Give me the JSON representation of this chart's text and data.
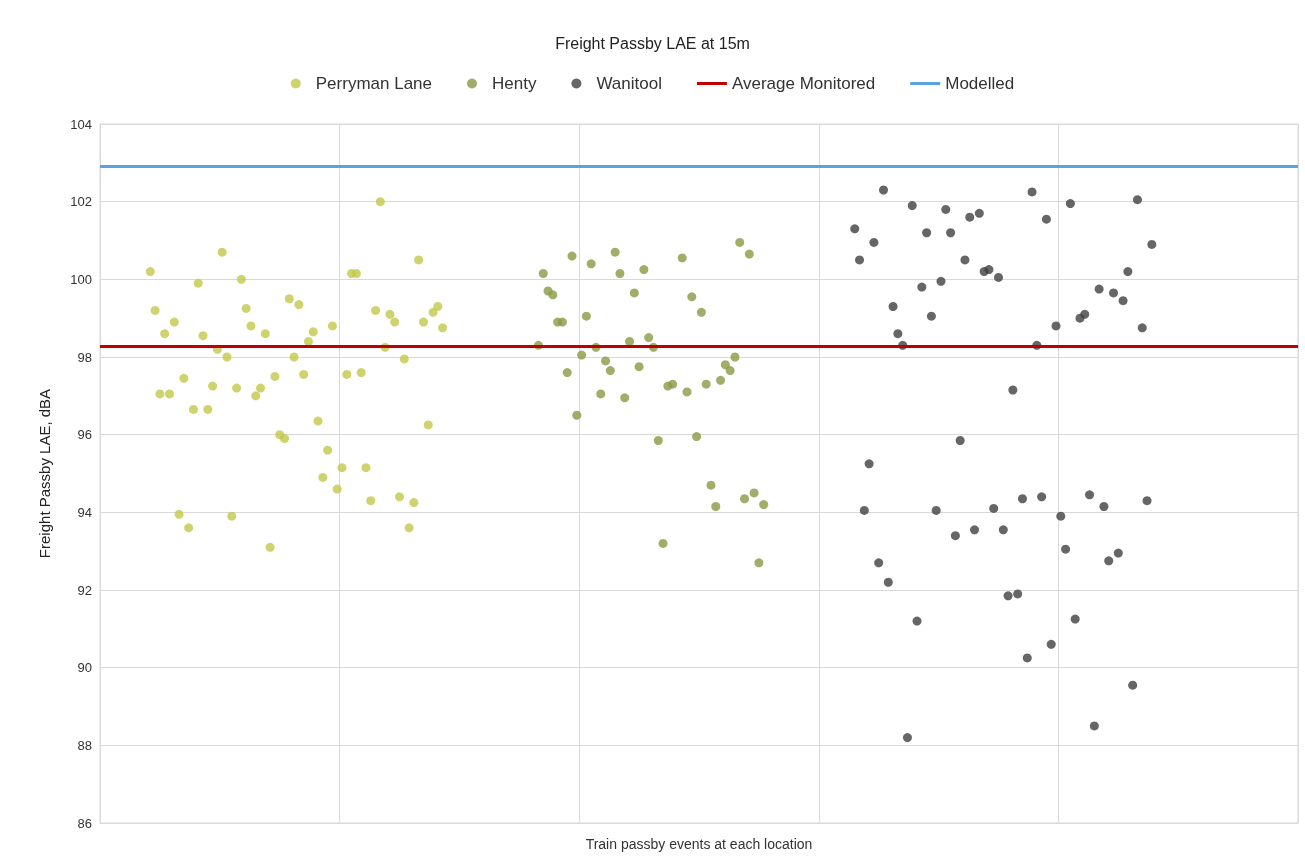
{
  "chart_data": {
    "type": "scatter",
    "title": "Freight Passby LAE at 15m",
    "xlabel": "Train passby events at each location",
    "ylabel": "Freight Passby LAE, dBA",
    "categories": [
      null,
      null,
      null,
      null,
      null,
      null,
      null,
      null,
      null,
      null,
      null,
      null,
      null,
      null,
      null,
      null,
      null,
      null,
      null,
      null,
      null,
      null,
      null,
      null,
      null,
      null,
      null,
      null,
      null,
      null,
      null,
      null,
      null,
      null,
      null,
      null,
      null,
      null,
      null,
      null,
      null,
      null,
      null,
      null,
      null,
      null,
      null,
      null,
      null,
      null,
      null,
      null,
      null,
      null,
      null,
      null,
      null,
      null,
      null,
      null,
      null,
      null,
      null,
      null,
      null,
      null,
      null,
      null,
      null,
      null,
      null,
      null,
      null,
      null,
      null,
      null,
      null,
      null,
      null,
      null,
      null,
      null,
      null,
      null,
      null,
      null,
      null,
      null,
      null,
      null,
      null,
      null,
      null,
      null,
      null,
      null,
      null,
      null,
      null,
      null,
      null,
      null,
      null,
      null,
      null,
      null,
      null,
      null,
      null,
      null,
      null,
      null,
      null,
      null,
      null,
      null,
      null,
      null,
      null,
      null,
      null,
      null,
      null,
      null,
      null,
      null,
      null,
      null,
      null,
      null,
      null,
      null,
      null,
      null,
      null,
      null,
      null,
      null,
      null,
      null,
      null,
      null,
      null,
      null,
      null,
      null,
      null,
      null,
      null,
      null,
      null,
      null,
      null,
      null,
      null,
      null,
      null,
      null,
      null,
      null,
      null,
      null,
      null,
      null,
      null,
      null,
      null,
      null,
      null,
      null,
      null,
      null,
      null,
      null,
      null,
      null,
      null,
      null,
      null,
      null,
      null,
      null,
      null,
      null,
      null,
      null,
      null,
      null,
      null,
      null,
      null,
      null,
      null,
      null,
      null,
      null,
      null,
      null,
      null,
      null,
      null,
      null,
      null,
      null,
      null,
      null,
      null,
      null,
      null,
      null,
      null,
      null,
      null,
      null,
      null,
      null,
      null,
      null,
      null,
      null,
      null,
      null,
      null,
      null,
      null,
      null,
      null,
      null,
      null,
      null,
      null,
      null,
      null,
      null,
      null,
      null,
      null,
      null,
      null,
      null,
      null,
      null,
      null,
      null,
      null,
      null,
      null,
      null,
      null,
      null
    ],
    "series": [
      {
        "name": "Perryman Lane",
        "color": "#c3c84a",
        "values": [
          null,
          null,
          null,
          null,
          null,
          null,
          null,
          null,
          null,
          null,
          100.2,
          99.2,
          97.05,
          98.6,
          97.05,
          98.9,
          93.95,
          97.45,
          93.6,
          96.65,
          99.9,
          98.55,
          96.65,
          97.25,
          98.2,
          100.7,
          98.0,
          93.9,
          97.2,
          100.0,
          99.25,
          98.8,
          97.0,
          97.2,
          98.6,
          93.1,
          97.5,
          96.0,
          95.9,
          99.5,
          98.0,
          99.35,
          97.55,
          98.4,
          98.65,
          96.35,
          94.9,
          95.6,
          98.8,
          94.6,
          95.15,
          97.55,
          100.15,
          100.15,
          97.6,
          95.15,
          94.3,
          99.2,
          102.0,
          98.25,
          99.1,
          98.9,
          94.4,
          97.95,
          93.6,
          94.25,
          100.5,
          98.9,
          96.25,
          99.15,
          99.3,
          98.75,
          null,
          null,
          null,
          null,
          null,
          null,
          null,
          null,
          null,
          null,
          null,
          null,
          null,
          null,
          null,
          null,
          null,
          null,
          null,
          null,
          null,
          null,
          null,
          null,
          null,
          null,
          null,
          null,
          null,
          null,
          null,
          null,
          null,
          null,
          null,
          null,
          null,
          null,
          null,
          null,
          null,
          null,
          null,
          null,
          null,
          null,
          null,
          null,
          null,
          null,
          null,
          null,
          null,
          null,
          null,
          null,
          null,
          null,
          null,
          null,
          null,
          null,
          null,
          null,
          null,
          null,
          null,
          null,
          null,
          null,
          null,
          null,
          null,
          null,
          null,
          null,
          null,
          null,
          null,
          null,
          null,
          null,
          null,
          null,
          null,
          null,
          null,
          null,
          null,
          null,
          null,
          null,
          null,
          null,
          null,
          null,
          null,
          null,
          null,
          null,
          null,
          null,
          null,
          null,
          null,
          null,
          null,
          null,
          null,
          null,
          null,
          null,
          null,
          null,
          null,
          null,
          null,
          null,
          null,
          null,
          null,
          null,
          null,
          null,
          null,
          null,
          null,
          null,
          null,
          null,
          null,
          null,
          null,
          null,
          null,
          null,
          null,
          null,
          null,
          null,
          null,
          null,
          null,
          null,
          null,
          null,
          null,
          null,
          null,
          null,
          null,
          null,
          null,
          null,
          null,
          null,
          null,
          null,
          null,
          null,
          null,
          null,
          null,
          null,
          null,
          null,
          null,
          null,
          null,
          null,
          null,
          null,
          null,
          null,
          null,
          null,
          null,
          null
        ]
      },
      {
        "name": "Henty",
        "color": "#8a9a45",
        "values": [
          null,
          null,
          null,
          null,
          null,
          null,
          null,
          null,
          null,
          null,
          null,
          null,
          null,
          null,
          null,
          null,
          null,
          null,
          null,
          null,
          null,
          null,
          null,
          null,
          null,
          null,
          null,
          null,
          null,
          null,
          null,
          null,
          null,
          null,
          null,
          null,
          null,
          null,
          null,
          null,
          null,
          null,
          null,
          null,
          null,
          null,
          null,
          null,
          null,
          null,
          null,
          null,
          null,
          null,
          null,
          null,
          null,
          null,
          null,
          null,
          null,
          null,
          null,
          null,
          null,
          null,
          null,
          null,
          null,
          null,
          null,
          null,
          null,
          null,
          null,
          null,
          null,
          null,
          null,
          null,
          null,
          null,
          null,
          null,
          null,
          null,
          null,
          null,
          null,
          null,
          null,
          98.3,
          100.15,
          99.7,
          99.6,
          98.9,
          98.9,
          97.6,
          100.6,
          96.5,
          98.05,
          99.05,
          100.4,
          98.25,
          97.05,
          97.9,
          97.65,
          100.7,
          100.15,
          96.95,
          98.4,
          99.65,
          97.75,
          100.25,
          98.5,
          98.25,
          95.85,
          93.2,
          97.25,
          97.3,
          null,
          100.55,
          97.1,
          99.55,
          95.95,
          99.15,
          97.3,
          94.7,
          94.15,
          97.4,
          97.8,
          97.65,
          98.0,
          100.95,
          94.35,
          100.65,
          94.5,
          92.7,
          94.2,
          null,
          null,
          null,
          null,
          null,
          null,
          null,
          null,
          null,
          null,
          null,
          null,
          null,
          null,
          null,
          null,
          null,
          null,
          null,
          null,
          null,
          null,
          null,
          null,
          null,
          null,
          null,
          null,
          null,
          null,
          null,
          null,
          null,
          null,
          null,
          null,
          null,
          null,
          null,
          null,
          null,
          null,
          null,
          null,
          null,
          null,
          null,
          null,
          null,
          null,
          null,
          null,
          null,
          null,
          null,
          null,
          null,
          null,
          null,
          null,
          null,
          null,
          null,
          null,
          null,
          null,
          null,
          null,
          null,
          null,
          null,
          null,
          null,
          null,
          null,
          null,
          null,
          null,
          null,
          null,
          null,
          null,
          null,
          null,
          null,
          null,
          null,
          null,
          null,
          null,
          null,
          null,
          null,
          null,
          null,
          null,
          null,
          null,
          null,
          null,
          null,
          null,
          null,
          null,
          null,
          null,
          null,
          null,
          null,
          null,
          null
        ]
      },
      {
        "name": "Wanitool",
        "color": "#404040",
        "values": [
          null,
          null,
          null,
          null,
          null,
          null,
          null,
          null,
          null,
          null,
          null,
          null,
          null,
          null,
          null,
          null,
          null,
          null,
          null,
          null,
          null,
          null,
          null,
          null,
          null,
          null,
          null,
          null,
          null,
          null,
          null,
          null,
          null,
          null,
          null,
          null,
          null,
          null,
          null,
          null,
          null,
          null,
          null,
          null,
          null,
          null,
          null,
          null,
          null,
          null,
          null,
          null,
          null,
          null,
          null,
          null,
          null,
          null,
          null,
          null,
          null,
          null,
          null,
          null,
          null,
          null,
          null,
          null,
          null,
          null,
          null,
          null,
          null,
          null,
          null,
          null,
          null,
          null,
          null,
          null,
          null,
          null,
          null,
          null,
          null,
          null,
          null,
          null,
          null,
          null,
          null,
          null,
          null,
          null,
          null,
          null,
          null,
          null,
          null,
          null,
          null,
          null,
          null,
          null,
          null,
          null,
          null,
          null,
          null,
          null,
          null,
          null,
          null,
          null,
          null,
          null,
          null,
          null,
          null,
          null,
          null,
          null,
          null,
          null,
          null,
          null,
          null,
          null,
          null,
          null,
          null,
          null,
          null,
          null,
          null,
          null,
          null,
          null,
          null,
          null,
          null,
          null,
          null,
          null,
          null,
          null,
          null,
          null,
          null,
          null,
          null,
          null,
          null,
          null,
          null,
          null,
          null,
          101.3,
          100.5,
          94.05,
          95.25,
          100.95,
          92.7,
          102.3,
          92.2,
          99.3,
          98.6,
          98.3,
          88.2,
          101.9,
          91.2,
          99.8,
          101.2,
          99.05,
          94.05,
          99.95,
          101.8,
          101.2,
          93.4,
          95.85,
          100.5,
          101.6,
          93.55,
          101.7,
          100.2,
          100.25,
          94.1,
          100.05,
          93.55,
          91.85,
          97.15,
          91.9,
          94.35,
          90.25,
          102.25,
          98.3,
          94.4,
          101.55,
          90.6,
          98.8,
          93.9,
          93.05,
          101.95,
          91.25,
          99.0,
          99.1,
          94.45,
          88.5,
          99.75,
          94.15,
          92.75,
          99.65,
          92.95,
          99.45,
          100.2,
          89.55,
          102.05,
          98.75,
          94.3,
          100.9,
          null,
          null,
          null,
          null,
          null,
          null,
          null,
          null,
          null,
          null,
          null,
          null,
          null,
          null,
          null,
          null,
          null,
          null,
          null,
          null,
          null,
          null,
          null,
          null,
          null,
          null,
          null,
          null,
          null,
          null
        ]
      }
    ],
    "ref_lines": [
      {
        "axis": "y",
        "value": 98.28,
        "label": "Average Monitored",
        "color": "#c00000"
      },
      {
        "axis": "y",
        "value": 102.9,
        "label": "Modelled",
        "color": "#5ba3e0"
      }
    ],
    "ylim": [
      86,
      104
    ],
    "yticks": [
      86,
      88,
      90,
      92,
      94,
      96,
      98,
      100,
      102,
      104
    ],
    "grid": true,
    "legend": "top",
    "marker": "circle",
    "tick_labels": "y"
  }
}
